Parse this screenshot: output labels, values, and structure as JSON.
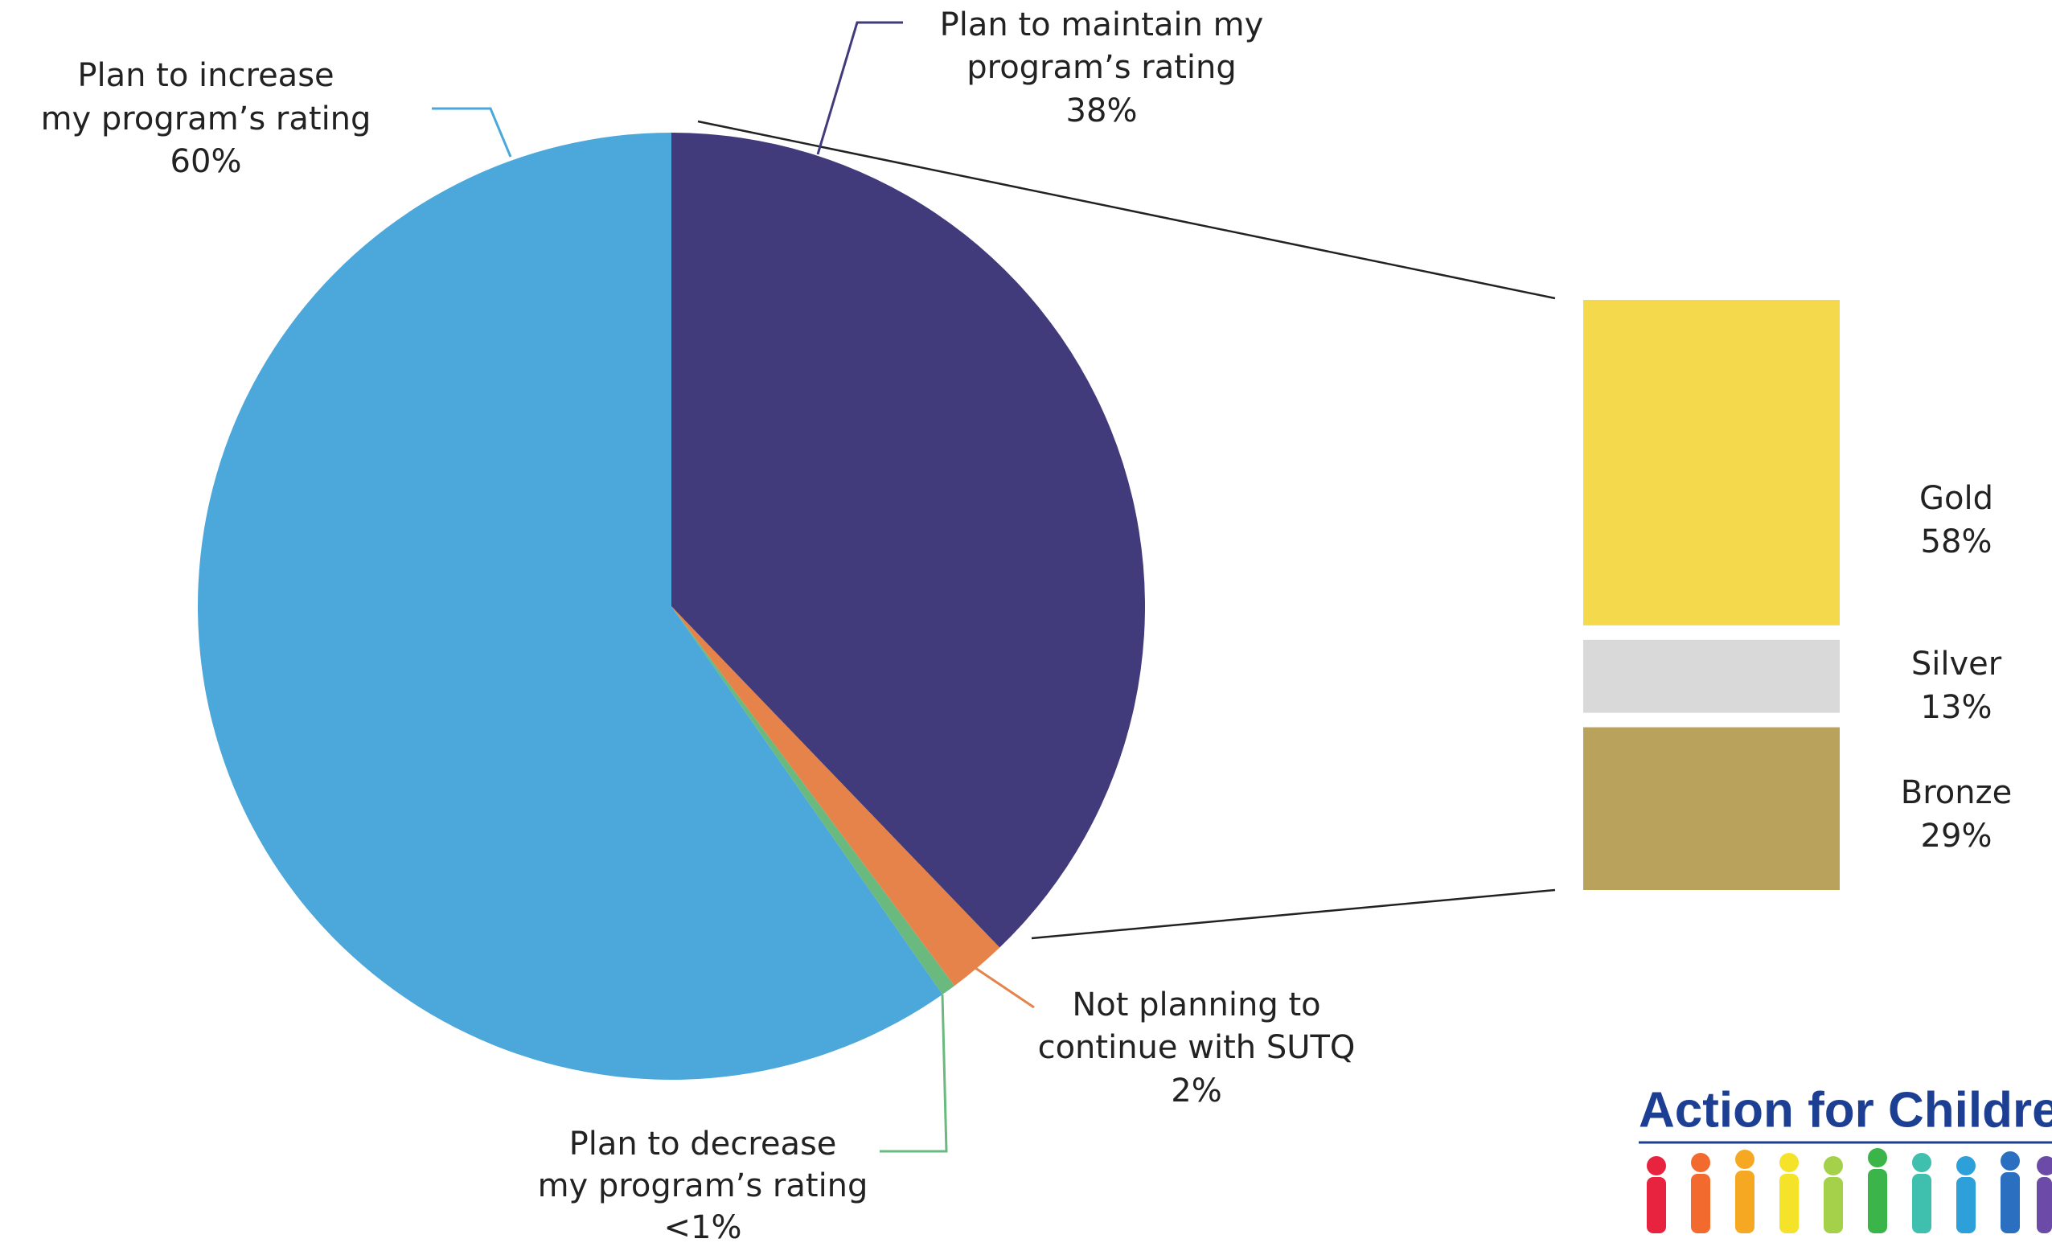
{
  "chart_data": [
    {
      "type": "pie",
      "categories": [
        [
          "Plan to maintain my",
          "program’s rating"
        ],
        [
          "Not planning to",
          "continue with SUTQ"
        ],
        [
          "Plan to decrease",
          "my program’s rating"
        ],
        [
          "Plan to increase",
          "my program’s rating"
        ]
      ],
      "values": [
        38,
        2,
        0.5,
        60
      ],
      "value_labels": [
        "38%",
        "2%",
        "<1%",
        "60%"
      ],
      "colors": [
        "#413a7b",
        "#e5834a",
        "#6ab97f",
        "#4ca7da"
      ]
    },
    {
      "type": "stacked-bar",
      "categories": [
        "Gold",
        "Silver",
        "Bronze"
      ],
      "values": [
        58,
        13,
        29
      ],
      "value_labels": [
        "58%",
        "13%",
        "29%"
      ],
      "colors": [
        "#f5d94c",
        "#d9d9d9",
        "#b8a25c"
      ]
    }
  ],
  "logo": "Action for Children"
}
